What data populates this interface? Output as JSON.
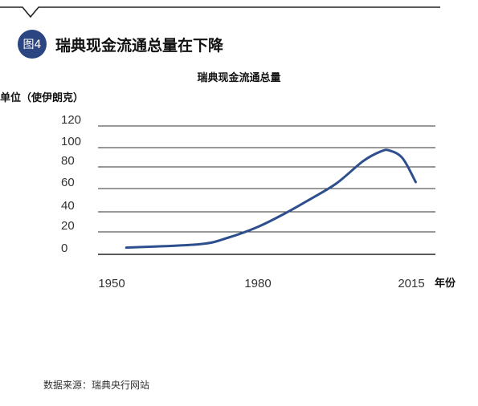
{
  "header": {
    "badge": "图4",
    "title": "瑞典现金流通总量在下降"
  },
  "colors": {
    "badge": "#2a4581",
    "line": "#2d4f8e",
    "grid": "#333333",
    "rule": "#222222"
  },
  "footer": {
    "source": "数据来源：瑞典央行网站"
  },
  "chart_data": {
    "type": "line",
    "title": "瑞典现金流通总量",
    "ylabel": "单位（使伊朗克）",
    "xlabel": "年份",
    "ylim": [
      0,
      120
    ],
    "xlim": [
      1950,
      2015
    ],
    "yticks": [
      0,
      20,
      40,
      60,
      80,
      100,
      120
    ],
    "xticks": [
      1950,
      1980,
      2015
    ],
    "grid": true,
    "series": [
      {
        "x": [
          1953,
          1968,
          1974,
          1980,
          1986,
          1992,
          1998,
          2004,
          2008,
          2010,
          2013,
          2016
        ],
        "y": [
          6,
          9,
          15,
          25,
          38,
          51,
          65,
          86,
          96,
          97,
          89,
          66
        ]
      }
    ]
  }
}
